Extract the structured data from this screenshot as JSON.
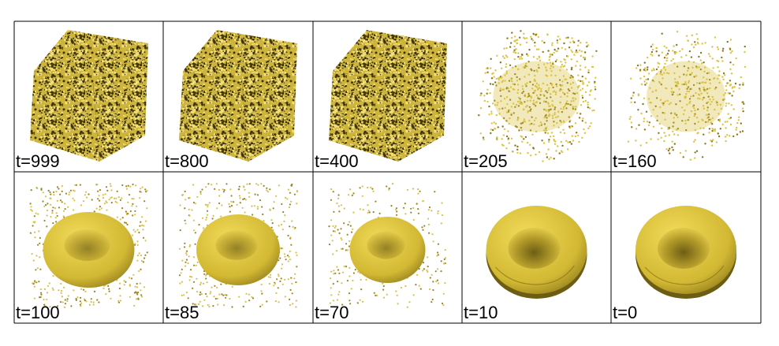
{
  "panels": [
    {
      "label": "t=999"
    },
    {
      "label": "t=800"
    },
    {
      "label": "t=400"
    },
    {
      "label": "t=205"
    },
    {
      "label": "t=160"
    },
    {
      "label": "t=100"
    },
    {
      "label": "t=85"
    },
    {
      "label": "t=70"
    },
    {
      "label": "t=10"
    },
    {
      "label": "t=0"
    }
  ]
}
